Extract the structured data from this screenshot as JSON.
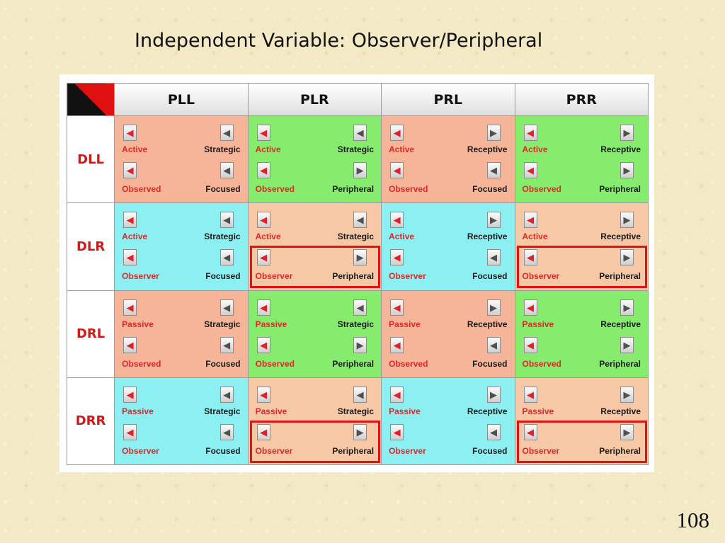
{
  "slide": {
    "title": "Independent Variable: Observer/Peripheral",
    "page_number": "108"
  },
  "table": {
    "columns": [
      "PLL",
      "PLR",
      "PRL",
      "PRR"
    ],
    "rows": [
      {
        "label": "DLL",
        "cells": [
          {
            "color": "#f6b498",
            "tl": "Active",
            "tr": "Strategic",
            "bl": "Observed",
            "br": "Focused",
            "arrow_top": "left",
            "arrow_bottom": "left"
          },
          {
            "color": "#86ec6e",
            "tl": "Active",
            "tr": "Strategic",
            "bl": "Observed",
            "br": "Peripheral",
            "arrow_top": "left",
            "arrow_bottom": "right"
          },
          {
            "color": "#f6b498",
            "tl": "Active",
            "tr": "Receptive",
            "bl": "Observed",
            "br": "Focused",
            "arrow_top": "right",
            "arrow_bottom": "left"
          },
          {
            "color": "#86ec6e",
            "tl": "Active",
            "tr": "Receptive",
            "bl": "Observed",
            "br": "Peripheral",
            "arrow_top": "right",
            "arrow_bottom": "right"
          }
        ]
      },
      {
        "label": "DLR",
        "cells": [
          {
            "color": "#8cf0f3",
            "tl": "Active",
            "tr": "Strategic",
            "bl": "Observer",
            "br": "Focused",
            "arrow_top": "left",
            "arrow_bottom": "left"
          },
          {
            "color": "#f6c8a6",
            "tl": "Active",
            "tr": "Strategic",
            "bl": "Observer",
            "br": "Peripheral",
            "arrow_top": "left",
            "arrow_bottom": "right"
          },
          {
            "color": "#8cf0f3",
            "tl": "Active",
            "tr": "Receptive",
            "bl": "Observer",
            "br": "Focused",
            "arrow_top": "right",
            "arrow_bottom": "left"
          },
          {
            "color": "#f6c8a6",
            "tl": "Active",
            "tr": "Receptive",
            "bl": "Observer",
            "br": "Peripheral",
            "arrow_top": "right",
            "arrow_bottom": "right"
          }
        ]
      },
      {
        "label": "DRL",
        "cells": [
          {
            "color": "#f6b498",
            "tl": "Passive",
            "tr": "Strategic",
            "bl": "Observed",
            "br": "Focused",
            "arrow_top": "left",
            "arrow_bottom": "left"
          },
          {
            "color": "#86ec6e",
            "tl": "Passive",
            "tr": "Strategic",
            "bl": "Observed",
            "br": "Peripheral",
            "arrow_top": "left",
            "arrow_bottom": "right"
          },
          {
            "color": "#f6b498",
            "tl": "Passive",
            "tr": "Receptive",
            "bl": "Observed",
            "br": "Focused",
            "arrow_top": "right",
            "arrow_bottom": "left"
          },
          {
            "color": "#86ec6e",
            "tl": "Passive",
            "tr": "Receptive",
            "bl": "Observed",
            "br": "Peripheral",
            "arrow_top": "right",
            "arrow_bottom": "right"
          }
        ]
      },
      {
        "label": "DRR",
        "cells": [
          {
            "color": "#8cf0f3",
            "tl": "Passive",
            "tr": "Strategic",
            "bl": "Observer",
            "br": "Focused",
            "arrow_top": "left",
            "arrow_bottom": "left"
          },
          {
            "color": "#f6c8a6",
            "tl": "Passive",
            "tr": "Strategic",
            "bl": "Observer",
            "br": "Peripheral",
            "arrow_top": "left",
            "arrow_bottom": "right"
          },
          {
            "color": "#8cf0f3",
            "tl": "Passive",
            "tr": "Receptive",
            "bl": "Observer",
            "br": "Focused",
            "arrow_top": "right",
            "arrow_bottom": "left"
          },
          {
            "color": "#f6c8a6",
            "tl": "Passive",
            "tr": "Receptive",
            "bl": "Observer",
            "br": "Peripheral",
            "arrow_top": "right",
            "arrow_bottom": "right"
          }
        ]
      }
    ],
    "highlighted_cells": [
      [
        1,
        1
      ],
      [
        1,
        3
      ],
      [
        3,
        1
      ],
      [
        3,
        3
      ]
    ],
    "highlight_color": "#e01414"
  }
}
